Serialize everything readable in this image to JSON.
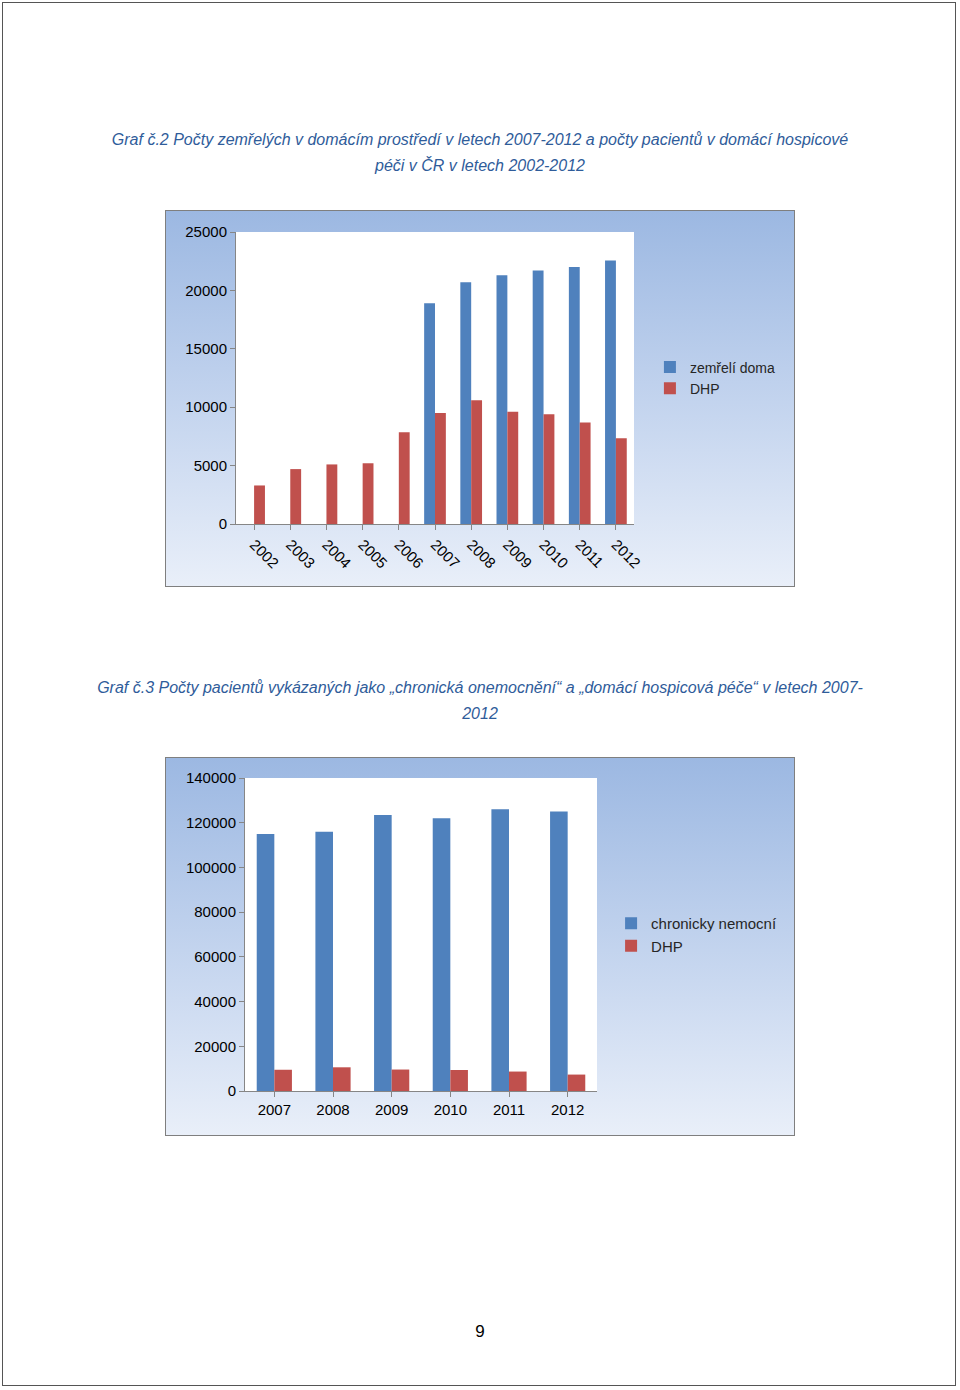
{
  "page_number": "9",
  "chart_data": [
    {
      "type": "bar",
      "title": "Graf č.2 Počty zemřelých v domácím prostředí v letech 2007-2012 a počty pacientů v domácí hospicové péči v ČR v letech 2002-2012",
      "categories": [
        "2002",
        "2003",
        "2004",
        "2005",
        "2006",
        "2007",
        "2008",
        "2009",
        "2010",
        "2011",
        "2012"
      ],
      "series": [
        {
          "name": "zemřelí doma",
          "color": "#4f81bd",
          "values": [
            null,
            null,
            null,
            null,
            null,
            18900,
            20700,
            21300,
            21700,
            22000,
            22550
          ]
        },
        {
          "name": "DHP",
          "color": "#c0504d",
          "values": [
            3300,
            4700,
            5100,
            5200,
            7850,
            9500,
            10600,
            9600,
            9400,
            8700,
            7350
          ]
        }
      ],
      "ylim": [
        0,
        25000
      ],
      "yticks": [
        0,
        5000,
        10000,
        15000,
        20000,
        25000
      ],
      "grid": false,
      "legend": "right"
    },
    {
      "type": "bar",
      "title": "Graf č.3 Počty pacientů vykázaných jako „chronická onemocnění“ a „domácí hospicová péče“ v letech 2007-2012",
      "categories": [
        "2007",
        "2008",
        "2009",
        "2010",
        "2011",
        "2012"
      ],
      "series": [
        {
          "name": "chronicky nemocní",
          "color": "#4f81bd",
          "values": [
            115000,
            116000,
            123500,
            122000,
            126000,
            125000
          ]
        },
        {
          "name": "DHP",
          "color": "#c0504d",
          "values": [
            9500,
            10600,
            9600,
            9400,
            8700,
            7350
          ]
        }
      ],
      "ylim": [
        0,
        140000
      ],
      "yticks": [
        0,
        20000,
        40000,
        60000,
        80000,
        100000,
        120000,
        140000
      ],
      "grid": false,
      "legend": "right"
    }
  ]
}
